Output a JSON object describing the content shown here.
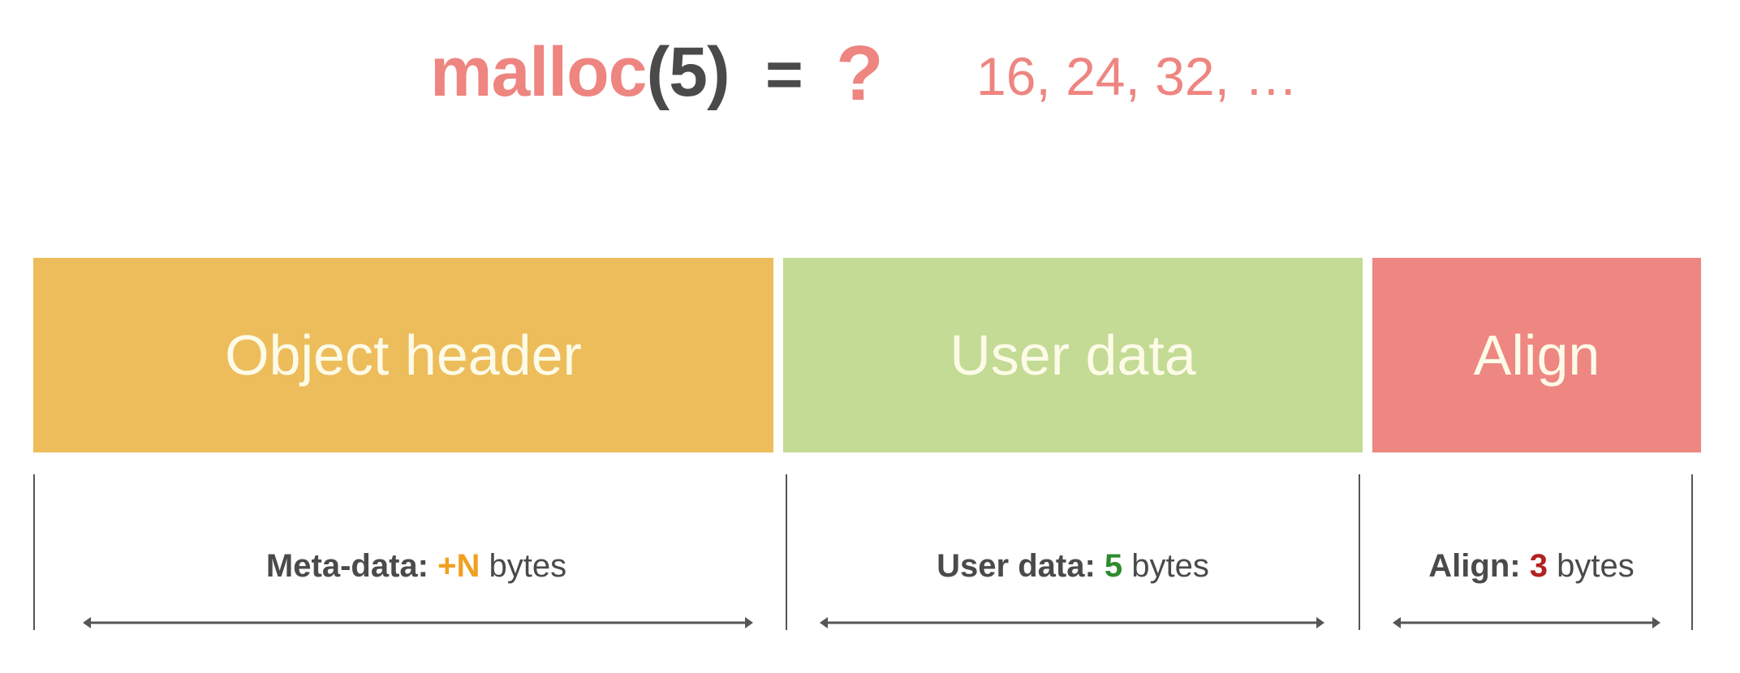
{
  "title": {
    "function": "malloc",
    "open_paren": "(",
    "argument": "5",
    "close_paren": ")",
    "equals": "=",
    "question": "?",
    "candidates": "16, 24, 32, …"
  },
  "blocks": [
    {
      "label": "Object header",
      "color": "#edbd5c"
    },
    {
      "label": "User data",
      "color": "#c3db94"
    },
    {
      "label": "Align",
      "color": "#ee8782"
    }
  ],
  "sizes": [
    {
      "name": "Meta-data:",
      "value": "+N",
      "unit": "bytes",
      "value_color": "#f0a020"
    },
    {
      "name": "User data:",
      "value": "5",
      "unit": "bytes",
      "value_color": "#2e8b2e"
    },
    {
      "name": "Align:",
      "value": "3",
      "unit": "bytes",
      "value_color": "#b22222"
    }
  ]
}
